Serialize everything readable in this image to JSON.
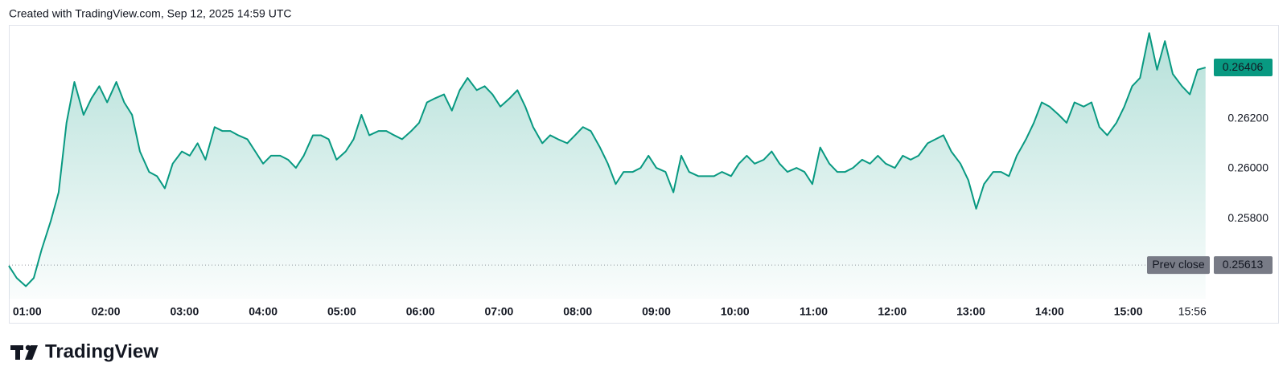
{
  "header": "Created with TradingView.com, Sep 12, 2025 14:59 UTC",
  "brand": "TradingView",
  "chart_data": {
    "type": "area",
    "color": "#089981",
    "x": [
      46,
      52,
      59,
      65,
      71,
      78,
      84,
      90,
      96,
      103,
      109,
      115,
      121,
      128,
      134,
      140,
      146,
      153,
      159,
      165,
      171,
      178,
      184,
      190,
      196,
      203,
      209,
      215,
      221,
      228,
      234,
      240,
      246,
      253,
      259,
      265,
      271,
      278,
      284,
      290,
      296,
      303,
      309,
      315,
      321,
      328,
      334,
      340,
      346,
      353,
      359,
      365,
      371,
      378,
      384,
      390,
      396,
      403,
      409,
      415,
      421,
      428,
      434,
      440,
      446,
      453,
      459,
      465,
      472,
      478,
      484,
      490,
      497,
      503,
      509,
      515,
      522,
      528,
      534,
      540,
      547,
      553,
      559,
      565,
      572,
      578,
      584,
      590,
      597,
      603,
      609,
      615,
      622,
      628,
      634,
      640,
      647,
      653,
      659,
      665,
      672,
      678,
      684,
      690,
      697,
      703,
      709,
      715,
      722,
      728,
      734,
      740,
      747,
      753,
      759,
      765,
      772,
      778,
      784,
      790,
      797,
      803,
      809,
      815,
      822,
      828,
      834,
      840,
      847,
      853,
      859,
      866,
      872,
      878,
      884,
      891,
      897,
      903,
      909,
      916,
      922,
      928,
      934,
      941,
      947,
      953,
      959
    ],
    "values": [
      0.2561,
      0.25561,
      0.25528,
      0.25561,
      0.25675,
      0.2579,
      0.25905,
      0.26184,
      0.26348,
      0.26216,
      0.26282,
      0.26331,
      0.26266,
      0.26348,
      0.26266,
      0.26216,
      0.26069,
      0.25987,
      0.2597,
      0.25921,
      0.2602,
      0.26069,
      0.26052,
      0.26102,
      0.26036,
      0.26167,
      0.26151,
      0.26151,
      0.26134,
      0.26118,
      0.26069,
      0.2602,
      0.26052,
      0.26052,
      0.26036,
      0.26003,
      0.26052,
      0.26134,
      0.26134,
      0.26118,
      0.26036,
      0.26069,
      0.26118,
      0.26216,
      0.26134,
      0.26151,
      0.26151,
      0.26134,
      0.26118,
      0.26151,
      0.26184,
      0.26266,
      0.26282,
      0.26298,
      0.26233,
      0.26315,
      0.26364,
      0.26315,
      0.26331,
      0.26298,
      0.26249,
      0.26282,
      0.26315,
      0.26249,
      0.26167,
      0.26102,
      0.26134,
      0.26118,
      0.26102,
      0.26134,
      0.26167,
      0.26151,
      0.26085,
      0.2602,
      0.25938,
      0.25987,
      0.25987,
      0.26003,
      0.26052,
      0.26003,
      0.25987,
      0.25905,
      0.26052,
      0.25987,
      0.2597,
      0.2597,
      0.2597,
      0.25987,
      0.2597,
      0.2602,
      0.26052,
      0.2602,
      0.26036,
      0.26069,
      0.2602,
      0.25987,
      0.26003,
      0.25987,
      0.25938,
      0.26085,
      0.2602,
      0.25987,
      0.25987,
      0.26003,
      0.26036,
      0.2602,
      0.26052,
      0.2602,
      0.26003,
      0.26052,
      0.26036,
      0.26052,
      0.26102,
      0.26118,
      0.26134,
      0.26069,
      0.2602,
      0.25954,
      0.25839,
      0.25938,
      0.25987,
      0.25987,
      0.2597,
      0.26052,
      0.26118,
      0.26184,
      0.26266,
      0.26249,
      0.26216,
      0.26184,
      0.26266,
      0.26249,
      0.26266,
      0.26167,
      0.26134,
      0.26184,
      0.26249,
      0.26331,
      0.26364,
      0.26544,
      0.26397,
      0.26512,
      0.2638,
      0.26331,
      0.26298,
      0.26397,
      0.26406
    ],
    "xlim": [
      46,
      961
    ],
    "xticks": [
      {
        "value": 60,
        "label": "01:00"
      },
      {
        "value": 120,
        "label": "02:00"
      },
      {
        "value": 180,
        "label": "03:00"
      },
      {
        "value": 240,
        "label": "04:00"
      },
      {
        "value": 300,
        "label": "05:00"
      },
      {
        "value": 360,
        "label": "06:00"
      },
      {
        "value": 420,
        "label": "07:00"
      },
      {
        "value": 480,
        "label": "08:00"
      },
      {
        "value": 540,
        "label": "09:00"
      },
      {
        "value": 600,
        "label": "10:00"
      },
      {
        "value": 660,
        "label": "11:00"
      },
      {
        "value": 720,
        "label": "12:00"
      },
      {
        "value": 780,
        "label": "13:00"
      },
      {
        "value": 840,
        "label": "14:00"
      },
      {
        "value": 900,
        "label": "15:00"
      }
    ],
    "ylim": [
      0.25478,
      0.26577
    ],
    "yticks": [
      {
        "value": 0.258,
        "label": "0.25800"
      },
      {
        "value": 0.26,
        "label": "0.26000"
      },
      {
        "value": 0.262,
        "label": "0.26200"
      }
    ],
    "grid": false,
    "last_time": {
      "value": 956,
      "label": "15:56"
    },
    "prev_close": {
      "label": "Prev close",
      "value": 0.25613
    }
  }
}
